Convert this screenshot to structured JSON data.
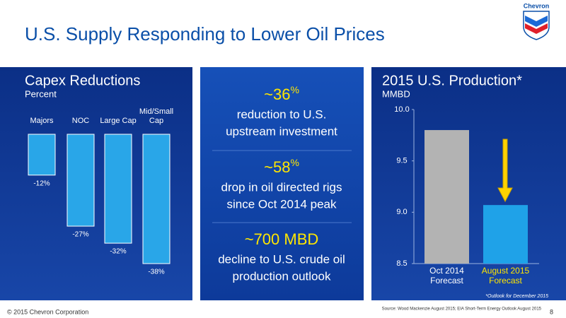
{
  "header": {
    "title": "U.S. Supply Responding to Lower Oil Prices",
    "logo": "Chevron"
  },
  "chart_data": [
    {
      "type": "bar",
      "title": "Capex Reductions",
      "subtitle": "Percent",
      "categories": [
        "Majors",
        "NOC",
        "Large Cap",
        "Mid/Small Cap"
      ],
      "values": [
        -12,
        -27,
        -32,
        -38
      ],
      "value_labels": [
        "-12%",
        "-27%",
        "-32%",
        "-38%"
      ],
      "color": "#29a6e8"
    },
    {
      "type": "bar",
      "title": "2015 U.S. Production*",
      "ylabel": "MMBD",
      "categories": [
        "Oct 2014 Forecast",
        "August 2015 Forecast"
      ],
      "values": [
        9.8,
        9.07
      ],
      "colors": [
        "#b3b3b3",
        "#1fa2e8"
      ],
      "category_colors": [
        "#ffffff",
        "#ffe600"
      ],
      "ylim": [
        8.5,
        10.0
      ],
      "yticks": [
        {
          "value": 8.5,
          "label": "8.5"
        },
        {
          "value": 9.0,
          "label": "9.0"
        },
        9.5,
        {
          "value": 10.0,
          "label": "10.0"
        }
      ],
      "note": "*Outlook for December 2015"
    }
  ],
  "highlights": [
    {
      "figure": "~36",
      "unit": "%",
      "lines": [
        "reduction to U.S.",
        "upstream investment"
      ]
    },
    {
      "figure": "~58",
      "unit": "%",
      "lines": [
        "drop in oil directed rigs",
        "since Oct 2014 peak"
      ]
    },
    {
      "figure": "~700 MBD",
      "lines": [
        "decline to U.S. crude oil",
        "production outlook"
      ]
    }
  ],
  "footer": {
    "copyright": "© 2015 Chevron Corporation",
    "source": "Source: Wood Mackenzie August 2015; EIA Short-Term Energy Outlook August 2015",
    "page": "8"
  }
}
